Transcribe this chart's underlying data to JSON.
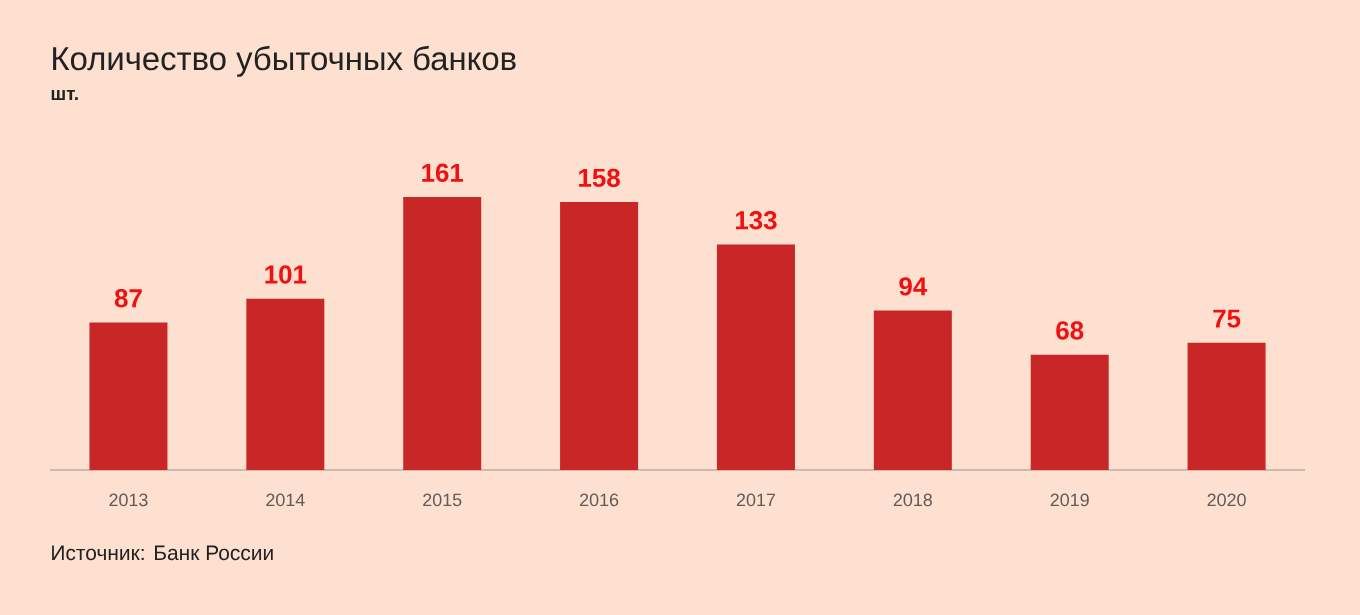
{
  "chart_data": {
    "type": "bar",
    "title": "Количество убыточных банков",
    "subtitle": "шт.",
    "categories": [
      "2013",
      "2014",
      "2015",
      "2016",
      "2017",
      "2018",
      "2019",
      "2020"
    ],
    "values": [
      87,
      101,
      161,
      158,
      133,
      94,
      68,
      75
    ],
    "color": "#c92727",
    "data_labels": true,
    "annotations": [
      "Источник: Банк России"
    ]
  }
}
